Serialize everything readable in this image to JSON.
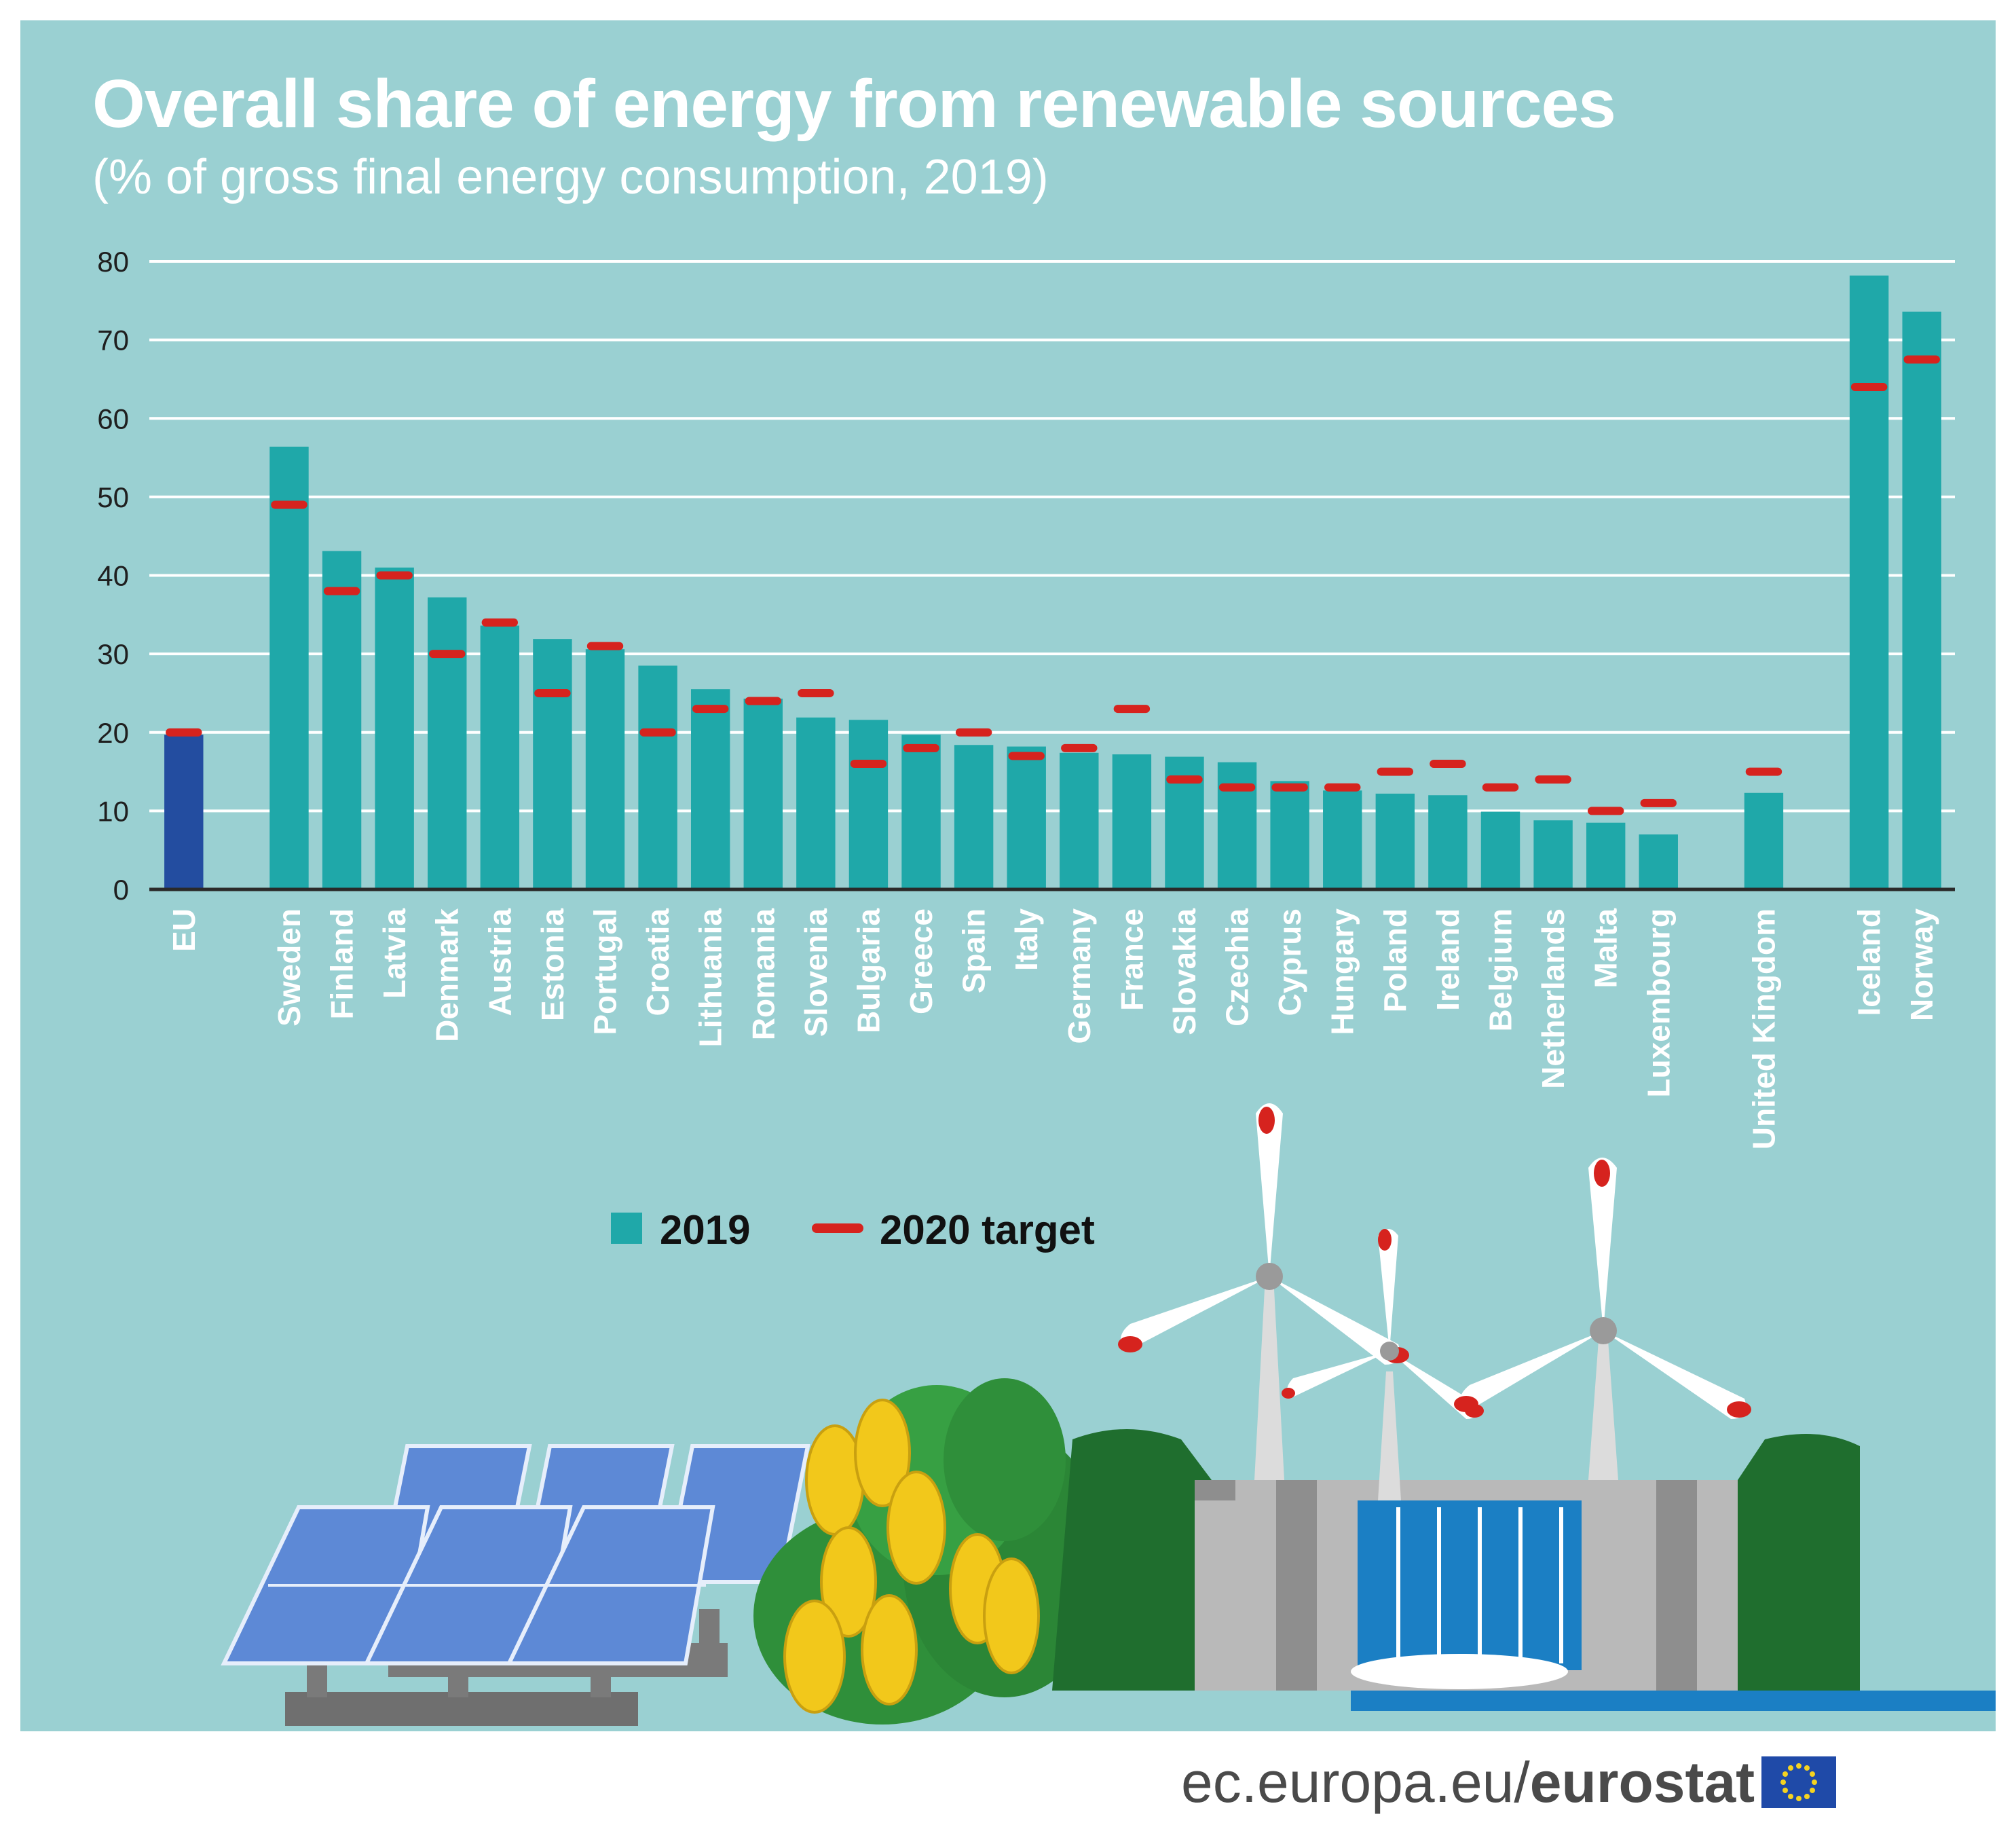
{
  "colors": {
    "background": "#9ad0d2",
    "bar": "#1fa8a9",
    "eu_bar": "#234da0",
    "target": "#d6231e",
    "grid": "#ffffff",
    "axis": "#2a2a2a",
    "label": "#ffffff",
    "tick": "#1f1f1f"
  },
  "chart_data": {
    "type": "bar",
    "title": "Overall share of energy from renewable sources",
    "subtitle": "(% of gross final energy consumption, 2019)",
    "ylim": [
      0,
      80
    ],
    "yticks": [
      0,
      10,
      20,
      30,
      40,
      50,
      60,
      70,
      80
    ],
    "grid": true,
    "legend_placement": "bottom-center",
    "groups": [
      [
        "EU"
      ],
      [
        "Sweden",
        "Finland",
        "Latvia",
        "Denmark",
        "Austria",
        "Estonia",
        "Portugal",
        "Croatia",
        "Lithuania",
        "Romania",
        "Slovenia",
        "Bulgaria",
        "Greece",
        "Spain",
        "Italy",
        "Germany",
        "France",
        "Slovakia",
        "Czechia",
        "Cyprus",
        "Hungary",
        "Poland",
        "Ireland",
        "Belgium",
        "Netherlands",
        "Malta",
        "Luxembourg"
      ],
      [
        "United Kingdom"
      ],
      [
        "Iceland",
        "Norway"
      ]
    ],
    "categories": [
      "EU",
      "Sweden",
      "Finland",
      "Latvia",
      "Denmark",
      "Austria",
      "Estonia",
      "Portugal",
      "Croatia",
      "Lithuania",
      "Romania",
      "Slovenia",
      "Bulgaria",
      "Greece",
      "Spain",
      "Italy",
      "Germany",
      "France",
      "Slovakia",
      "Czechia",
      "Cyprus",
      "Hungary",
      "Poland",
      "Ireland",
      "Belgium",
      "Netherlands",
      "Malta",
      "Luxembourg",
      "United Kingdom",
      "Iceland",
      "Norway"
    ],
    "series": [
      {
        "name": "2019",
        "kind": "bar",
        "values": [
          19.7,
          56.4,
          43.1,
          41.0,
          37.2,
          33.6,
          31.9,
          30.6,
          28.5,
          25.5,
          24.3,
          21.9,
          21.6,
          19.7,
          18.4,
          18.2,
          17.4,
          17.2,
          16.9,
          16.2,
          13.8,
          12.6,
          12.2,
          12.0,
          9.9,
          8.8,
          8.5,
          7.0,
          12.3,
          78.2,
          73.6
        ]
      },
      {
        "name": "2020 target",
        "kind": "marker",
        "values": [
          20,
          49,
          38,
          40,
          30,
          34,
          25,
          31,
          20,
          23,
          24,
          25,
          16,
          18,
          20,
          17,
          18,
          23,
          14,
          13,
          13,
          13,
          15,
          16,
          13,
          14,
          10,
          11,
          15,
          64,
          67.5
        ]
      }
    ]
  },
  "legend": {
    "bar_label": "2019",
    "target_label": "2020 target"
  },
  "footer": {
    "prefix": "ec.europa.eu/",
    "brand": "eurostat"
  },
  "illustration": {
    "icons": [
      "solar-panels-icon",
      "biomass-plants-icon",
      "wind-turbines-icon",
      "hydro-dam-icon"
    ]
  }
}
